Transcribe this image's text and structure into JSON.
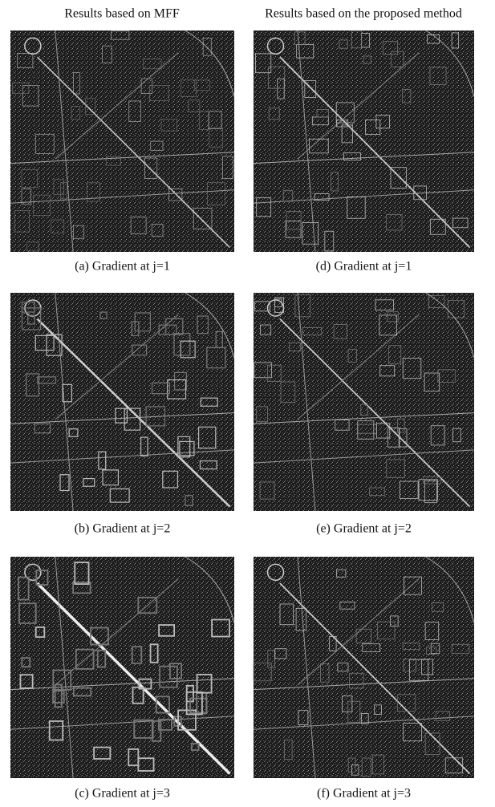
{
  "columns": [
    {
      "header": "Results based on MFF",
      "panels": [
        {
          "caption": "(a) Gradient at j=1"
        },
        {
          "caption": "(b) Gradient at j=2"
        },
        {
          "caption": "(c) Gradient at j=3"
        }
      ]
    },
    {
      "header": "Results based on the proposed method",
      "panels": [
        {
          "caption": "(d) Gradient at j=1"
        },
        {
          "caption": "(e) Gradient at j=2"
        },
        {
          "caption": "(f) Gradient at j=3"
        }
      ]
    }
  ]
}
